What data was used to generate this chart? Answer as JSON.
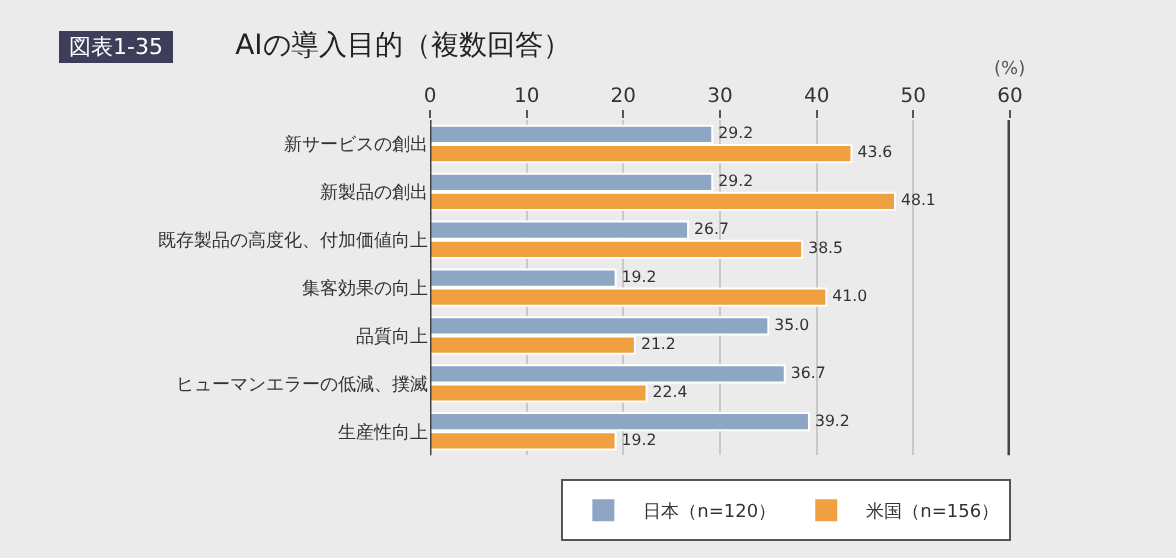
{
  "chart_data": {
    "type": "bar",
    "orientation": "horizontal",
    "title": "AIの導入目的（複数回答）",
    "annotations": [
      "図表1-35"
    ],
    "xlabel": "(%)",
    "categories": [
      "新サービスの創出",
      "新製品の創出",
      "既存製品の高度化、付加価値向上",
      "集客効果の向上",
      "品質向上",
      "ヒューマンエラーの低減、撲滅",
      "生産性向上"
    ],
    "series": [
      {
        "name": "日本（n=120）",
        "color": "#8da6c3",
        "values": [
          29.2,
          29.2,
          26.7,
          19.2,
          35,
          36.7,
          39.2
        ],
        "value_labels": [
          "29.2",
          "29.2",
          "26.7",
          "19.2",
          "35.0",
          "36.7",
          "39.2"
        ]
      },
      {
        "name": "米国（n=156）",
        "color": "#f0a040",
        "values": [
          43.6,
          48.1,
          38.5,
          41,
          21.2,
          22.4,
          19.2
        ],
        "value_labels": [
          "43.6",
          "48.1",
          "38.5",
          "41.0",
          "21.2",
          "22.4",
          "19.2"
        ]
      }
    ],
    "xlim": [
      0,
      60
    ],
    "xticks": [
      0,
      10,
      20,
      30,
      40,
      50,
      60
    ],
    "grid": "x",
    "legend": "bottom right"
  }
}
